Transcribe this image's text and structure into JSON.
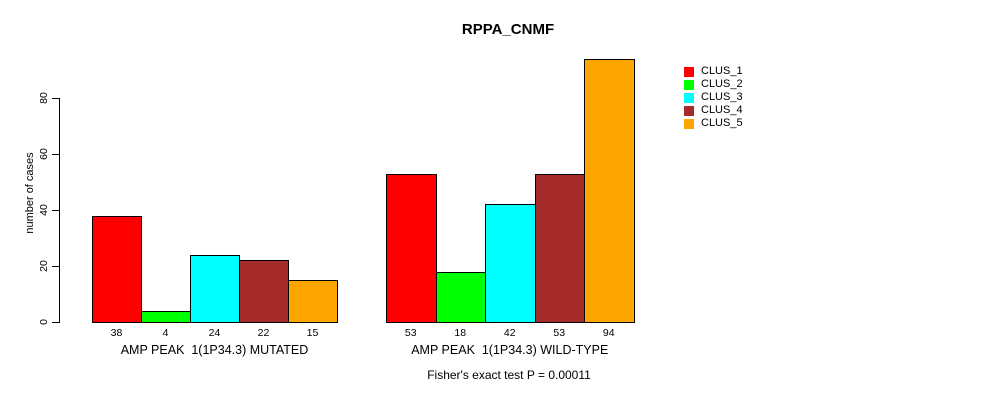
{
  "chart_data": {
    "type": "bar",
    "title": "RPPA_CNMF",
    "xlabel": "",
    "ylabel": "number of cases",
    "ylim": [
      0,
      94
    ],
    "yticks": [
      0,
      20,
      40,
      60,
      80
    ],
    "grid": false,
    "legend_position": "right",
    "bar_border_color": "#000000",
    "categories": [
      "AMP PEAK  1(1P34.3) MUTATED",
      "AMP PEAK  1(1P34.3) WILD-TYPE"
    ],
    "series": [
      {
        "name": "CLUS_1",
        "color": "#FF0000",
        "values": [
          38,
          53
        ]
      },
      {
        "name": "CLUS_2",
        "color": "#00FF00",
        "values": [
          4,
          18
        ]
      },
      {
        "name": "CLUS_3",
        "color": "#00FFFF",
        "values": [
          24,
          42
        ]
      },
      {
        "name": "CLUS_4",
        "color": "#A52A2A",
        "values": [
          22,
          53
        ]
      },
      {
        "name": "CLUS_5",
        "color": "#FFA500",
        "values": [
          15,
          94
        ]
      }
    ],
    "bar_value_labels_shown": true,
    "annotation": "Fisher's exact test P = 0.00011"
  }
}
